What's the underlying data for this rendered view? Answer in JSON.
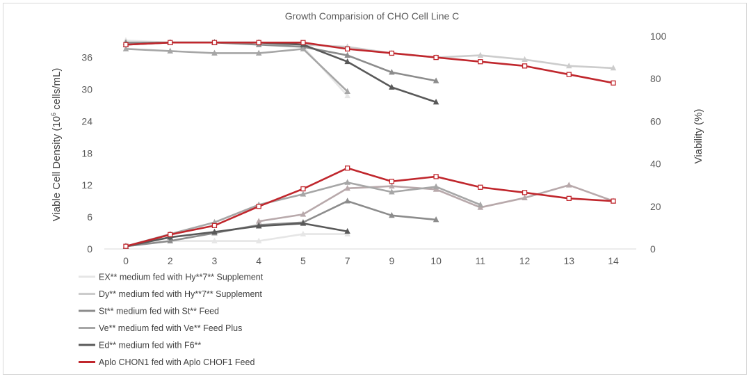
{
  "chart_data": {
    "type": "line",
    "title": "Growth Comparision of CHO Cell Line C",
    "xlabel": "",
    "ylabel": "Viable Cell Density  (10⁶ cells/mL)",
    "ylabel_parts": [
      "Viable Cell Density  (10",
      "6",
      " cells/mL)"
    ],
    "y2label": "Viability (%)",
    "categories": [
      "0",
      "2",
      "3",
      "4",
      "5",
      "7",
      "9",
      "10",
      "11",
      "12",
      "13",
      "14"
    ],
    "ylim": [
      0,
      40
    ],
    "y_ticks": [
      "0",
      "6",
      "12",
      "18",
      "24",
      "30",
      "36"
    ],
    "y2lim": [
      0,
      100
    ],
    "y2_ticks": [
      "0",
      "20",
      "40",
      "60",
      "80",
      "100"
    ],
    "series": [
      {
        "name": "EX** medium fed with Hy**7** Supplement",
        "color": "#e6e6e6",
        "marker": "triangle",
        "vcd": [
          0.5,
          1.5,
          1.5,
          1.5,
          2.8,
          2.8,
          null,
          null,
          null,
          null,
          null,
          null
        ],
        "viability": [
          98,
          97,
          97,
          97,
          95,
          72,
          null,
          null,
          null,
          null,
          null,
          null
        ]
      },
      {
        "name": "Dy** medium fed with Hy**7** Supplement",
        "color": "#cccccc",
        "marker": "triangle",
        "vcd": [
          null,
          null,
          null,
          null,
          null,
          null,
          null,
          null,
          null,
          null,
          null,
          null
        ],
        "viability": [
          97,
          97,
          97,
          97,
          96,
          95,
          92,
          90,
          91,
          89,
          86,
          85
        ]
      },
      {
        "name": "St** medium fed with St** Feed",
        "color": "#8c8c8c",
        "marker": "triangle",
        "vcd": [
          0.5,
          1.5,
          3.0,
          4.5,
          5.0,
          9.0,
          6.3,
          5.5,
          null,
          null,
          null,
          null
        ],
        "viability": [
          97,
          97,
          97,
          96,
          95,
          91,
          83,
          79,
          null,
          null,
          null,
          null
        ]
      },
      {
        "name": "Ve** medium fed with Ve** Feed Plus",
        "color": "#a6a6a6",
        "marker": "triangle",
        "vcd": [
          0.5,
          2.8,
          5.0,
          8.3,
          10.3,
          12.5,
          10.7,
          11.7,
          8.3,
          null,
          null,
          null
        ],
        "viability": [
          94,
          93,
          92,
          92,
          94,
          74,
          null,
          null,
          null,
          null,
          null,
          null
        ]
      },
      {
        "name": "Ed** medium fed with F6**",
        "color": "#595959",
        "marker": "triangle",
        "vcd": [
          0.5,
          2.2,
          3.2,
          4.3,
          4.8,
          3.3,
          null,
          null,
          null,
          null,
          null,
          null
        ],
        "viability": [
          96,
          97,
          97,
          97,
          96,
          88,
          76,
          69,
          null,
          null,
          null,
          null
        ]
      },
      {
        "name": "Aplo CHON1 fed with Aplo CHOF1 Feed",
        "color": "#c0272d",
        "marker": "square",
        "vcd": [
          0.5,
          2.7,
          4.4,
          8.0,
          11.3,
          15.2,
          12.7,
          13.6,
          11.6,
          10.6,
          9.5,
          9.0
        ],
        "viability": [
          96,
          97,
          97,
          97,
          97,
          94,
          92,
          90,
          88,
          86,
          82,
          78
        ]
      }
    ],
    "extra_series": [
      {
        "name": "",
        "color": "#b8a9ab",
        "marker": "triangle",
        "vcd": [
          null,
          null,
          null,
          5.2,
          6.5,
          11.4,
          11.8,
          11.2,
          7.8,
          9.6,
          12.0,
          9.0
        ]
      }
    ],
    "legend_position": "bottom-left"
  }
}
